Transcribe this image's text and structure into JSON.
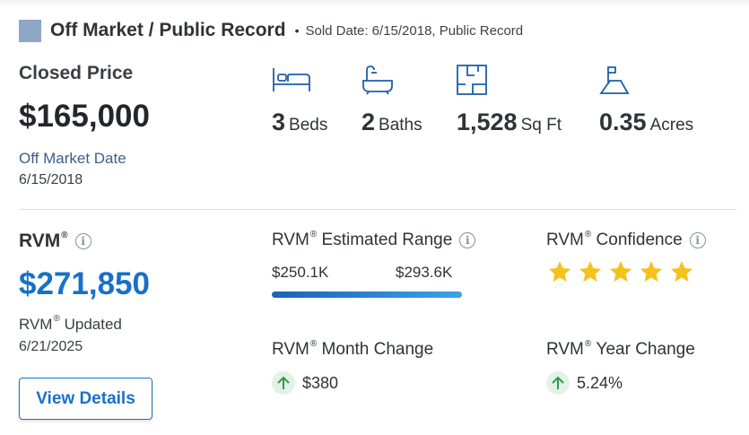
{
  "status": {
    "label": "Off Market / Public Record",
    "separator": "•",
    "meta": "Sold Date: 6/15/2018, Public Record",
    "swatch_color": "#8fa6c6"
  },
  "closed": {
    "label": "Closed Price",
    "price": "$165,000",
    "off_market_label": "Off Market Date",
    "off_market_value": "6/15/2018"
  },
  "facts": [
    {
      "icon": "bed-icon",
      "value": "3",
      "unit": "Beds"
    },
    {
      "icon": "bathtub-icon",
      "value": "2",
      "unit": "Baths"
    },
    {
      "icon": "floorplan-icon",
      "value": "1,528",
      "unit": "Sq Ft"
    },
    {
      "icon": "lot-icon",
      "value": "0.35",
      "unit": "Acres"
    }
  ],
  "rvm": {
    "title": "RVM",
    "reg": "®",
    "value": "$271,850",
    "updated_label": "Updated",
    "updated_value": "6/21/2025",
    "view_details": "View Details",
    "range_label": "Estimated Range",
    "range_low": "$250.1K",
    "range_high": "$293.6K",
    "confidence_label": "Confidence",
    "confidence_stars": 5,
    "month_change_label": "Month Change",
    "month_change_value": "$380",
    "year_change_label": "Year Change",
    "year_change_value": "5.24%",
    "accent_color": "#1870c9",
    "star_color": "#f5c21b",
    "up_color": "#2e9b4a"
  }
}
